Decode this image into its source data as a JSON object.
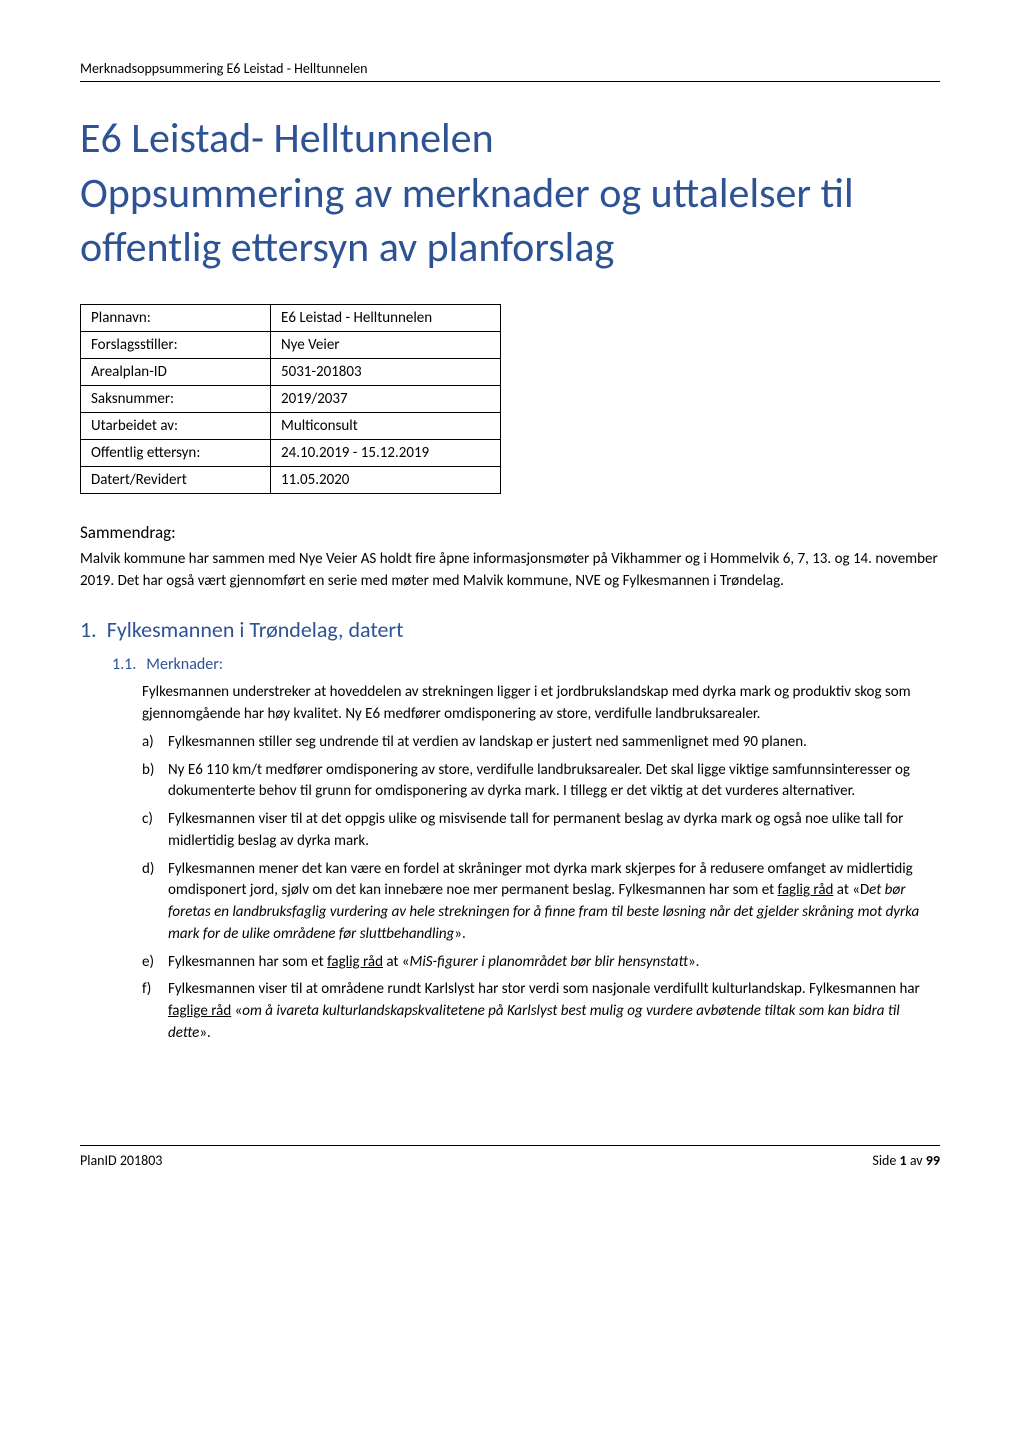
{
  "header": {
    "text": "Merknadsoppsummering E6 Leistad - Helltunnelen"
  },
  "title": {
    "line1": "E6 Leistad- Helltunnelen",
    "line2": "Oppsummering av merknader og uttalelser til offentlig ettersyn av planforslag"
  },
  "info_table": {
    "rows": [
      {
        "label": "Plannavn:",
        "value": "E6 Leistad - Helltunnelen"
      },
      {
        "label": "Forslagsstiller:",
        "value": "Nye Veier"
      },
      {
        "label": "Arealplan-ID",
        "value": "5031-201803"
      },
      {
        "label": "Saksnummer:",
        "value": "2019/2037"
      },
      {
        "label": "Utarbeidet av:",
        "value": "Multiconsult"
      },
      {
        "label": "Offentlig ettersyn:",
        "value": "24.10.2019 - 15.12.2019"
      },
      {
        "label": "Datert/Revidert",
        "value": "11.05.2020"
      }
    ]
  },
  "summary": {
    "heading": "Sammendrag:",
    "text": "Malvik kommune har sammen med Nye Veier AS holdt fire åpne informasjonsmøter på Vikhammer og i Hommelvik 6, 7, 13. og 14. november 2019. Det har også vært gjennomført en serie med møter med Malvik kommune, NVE og Fylkesmannen i Trøndelag."
  },
  "section1": {
    "number": "1.",
    "title": "Fylkesmannen i Trøndelag, datert",
    "sub": {
      "number": "1.1.",
      "title": "Merknader:",
      "intro": "Fylkesmannen understreker at hoveddelen av strekningen ligger i et jordbrukslandskap med dyrka mark og produktiv skog som gjennomgående har høy kvalitet. Ny E6 medfører omdisponering av store, verdifulle landbruksarealer.",
      "items": [
        {
          "letter": "a)",
          "text": "Fylkesmannen stiller seg undrende til at verdien av landskap er justert ned sammenlignet med 90 planen."
        },
        {
          "letter": "b)",
          "text": "Ny E6 110 km/t medfører omdisponering av store, verdifulle landbruksarealer. Det skal ligge viktige samfunnsinteresser og dokumenterte behov til grunn for omdisponering av dyrka mark. I tillegg er det viktig at det vurderes alternativer."
        },
        {
          "letter": "c)",
          "text": "Fylkesmannen viser til at det oppgis ulike og misvisende tall for permanent beslag av dyrka mark og også noe ulike tall for midlertidig beslag av dyrka mark."
        },
        {
          "letter": "d)",
          "text_parts": [
            {
              "t": "Fylkesmannen mener det kan være en fordel at skråninger mot dyrka mark skjerpes for å redusere omfanget av midlertidig omdisponert jord, sjølv om det kan innebære noe mer permanent beslag. Fylkesmannen har som et "
            },
            {
              "t": "faglig råd",
              "u": true
            },
            {
              "t": " at «D"
            },
            {
              "t": "et bør foretas en landbruksfaglig vurdering av hele strekningen for å finne fram til beste løsning når det gjelder skråning mot dyrka mark for de ulike områdene før sluttbehandling",
              "i": true
            },
            {
              "t": "»."
            }
          ]
        },
        {
          "letter": "e)",
          "text_parts": [
            {
              "t": "Fylkesmannen har som et "
            },
            {
              "t": "faglig råd",
              "u": true
            },
            {
              "t": " at «"
            },
            {
              "t": "MiS-figurer i planområdet bør blir hensynstatt",
              "i": true
            },
            {
              "t": "»."
            }
          ]
        },
        {
          "letter": "f)",
          "text_parts": [
            {
              "t": "Fylkesmannen viser til at områdene rundt Karlslyst har stor verdi som nasjonale verdifullt kulturlandskap. Fylkesmannen har "
            },
            {
              "t": "faglige råd",
              "u": true
            },
            {
              "t": " «"
            },
            {
              "t": "om å ivareta kulturlandskapskvalitetene på Karlslyst best mulig og vurdere avbøtende tiltak som kan bidra til dette",
              "i": true
            },
            {
              "t": "»."
            }
          ]
        }
      ]
    }
  },
  "footer": {
    "left": "PlanID 201803",
    "right_prefix": "Side ",
    "right_page": "1",
    "right_mid": " av ",
    "right_total": "99"
  }
}
